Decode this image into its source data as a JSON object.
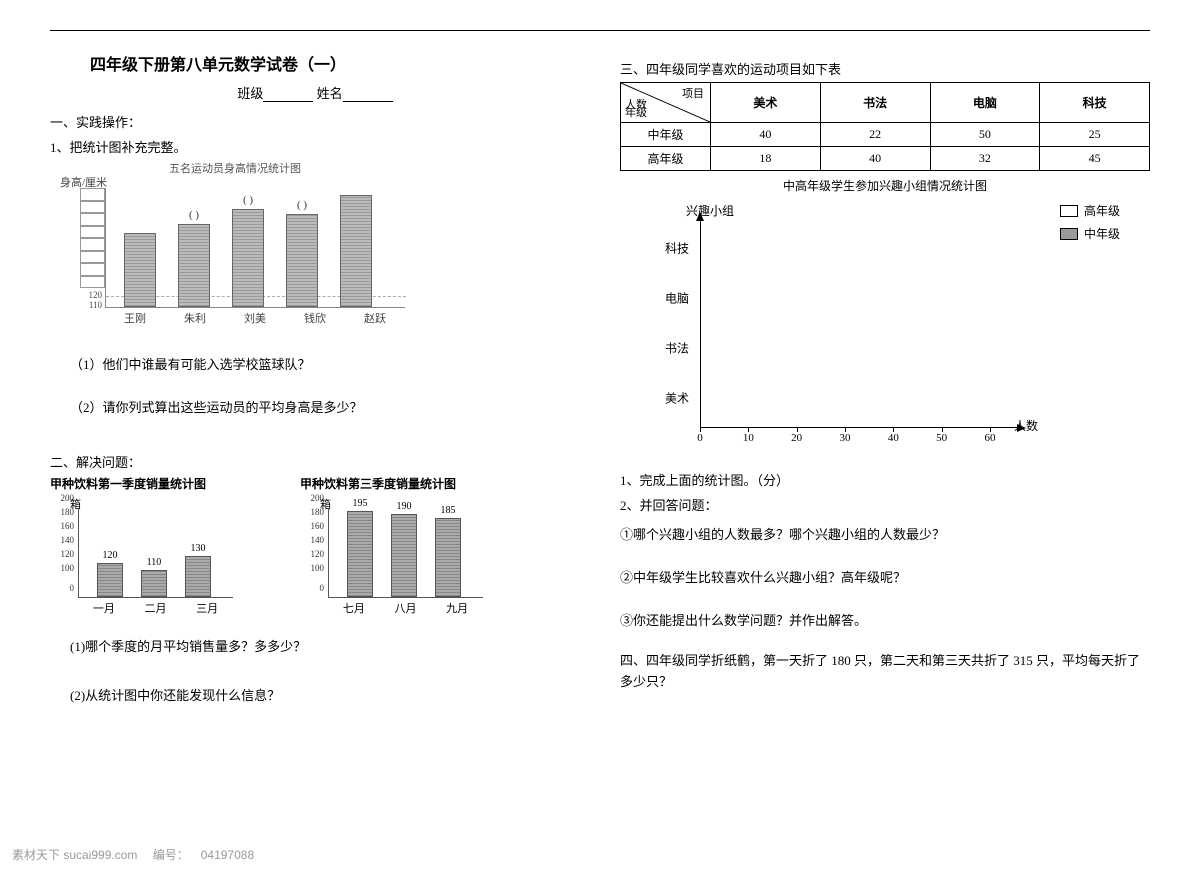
{
  "title": "四年级下册第八单元数学试卷（一）",
  "class_line": {
    "class_label": "班级",
    "name_label": "姓名"
  },
  "sec1": {
    "heading": "一、实践操作：",
    "item1": "1、把统计图补充完整。",
    "chart": {
      "title": "五名运动员身高情况统计图",
      "ylabel": "身高/厘米",
      "ytick_labels": [
        "120",
        "110"
      ],
      "grid_color": "#aaaaaa",
      "bars": [
        {
          "name": "王刚",
          "height_pct": 62,
          "show_paren": false
        },
        {
          "name": "朱利",
          "height_pct": 70,
          "show_paren": true
        },
        {
          "name": "刘美",
          "height_pct": 82,
          "show_paren": true
        },
        {
          "name": "钱欣",
          "height_pct": 78,
          "show_paren": true
        },
        {
          "name": "赵跃",
          "height_pct": 94,
          "show_paren": false
        }
      ]
    },
    "q1": "（1）他们中谁最有可能入选学校篮球队？",
    "q2": "（2）请你列式算出这些运动员的平均身高是多少？"
  },
  "sec2": {
    "heading": "二、解决问题：",
    "chart_a": {
      "title": "甲种饮料第一季度销量统计图",
      "ylabel": "箱",
      "ymax": 200,
      "yticks": [
        0,
        100,
        120,
        140,
        160,
        180,
        200
      ],
      "bars": [
        {
          "label": "一月",
          "value": 120
        },
        {
          "label": "二月",
          "value": 110
        },
        {
          "label": "三月",
          "value": 130
        }
      ]
    },
    "chart_b": {
      "title": "甲种饮料第三季度销量统计图",
      "ylabel": "箱",
      "ymax": 200,
      "yticks": [
        0,
        100,
        120,
        140,
        160,
        180,
        200
      ],
      "bars": [
        {
          "label": "七月",
          "value": 195
        },
        {
          "label": "八月",
          "value": 190
        },
        {
          "label": "九月",
          "value": 185
        }
      ]
    },
    "q1": "(1)哪个季度的月平均销售量多？多多少？",
    "q2": "(2)从统计图中你还能发现什么信息？"
  },
  "sec3": {
    "heading": "三、四年级同学喜欢的运动项目如下表",
    "table": {
      "diag": {
        "top": "项目",
        "mid": "人数",
        "bot": "年级"
      },
      "cols": [
        "美术",
        "书法",
        "电脑",
        "科技"
      ],
      "rows": [
        {
          "label": "中年级",
          "vals": [
            40,
            22,
            50,
            25
          ]
        },
        {
          "label": "高年级",
          "vals": [
            18,
            40,
            32,
            45
          ]
        }
      ]
    },
    "caption": "中高年级学生参加兴趣小组情况统计图",
    "blank_chart": {
      "ylabel_top": "兴趣小组",
      "xlabel": "人数",
      "ycats": [
        "科技",
        "电脑",
        "书法",
        "美术"
      ],
      "xticks": [
        0,
        10,
        20,
        30,
        40,
        50,
        60
      ],
      "legend": [
        {
          "label": "高年级",
          "fill": "#ffffff"
        },
        {
          "label": "中年级",
          "fill": "#9a9a9a"
        }
      ]
    },
    "p1": "1、完成上面的统计图。（分）",
    "p2": "2、并回答问题：",
    "q1": "①哪个兴趣小组的人数最多？哪个兴趣小组的人数最少？",
    "q2": "②中年级学生比较喜欢什么兴趣小组？高年级呢？",
    "q3": "③你还能提出什么数学问题？并作出解答。"
  },
  "sec4": {
    "text": "四、四年级同学折纸鹤，第一天折了 180 只，第二天和第三天共折了 315 只，平均每天折了多少只？"
  },
  "footer": {
    "site": "素材天下 sucai999.com",
    "code_label": "编号：",
    "code": "04197088"
  }
}
